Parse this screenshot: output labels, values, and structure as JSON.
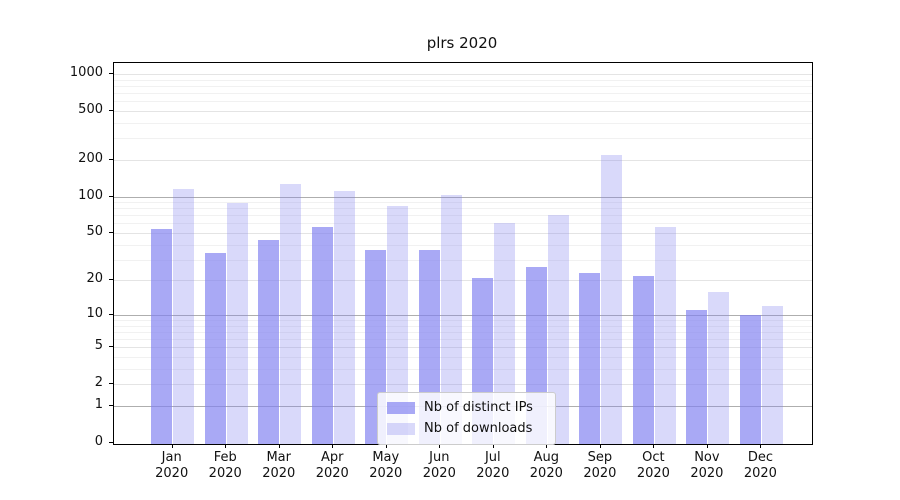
{
  "chart_data": {
    "type": "bar",
    "title": "plrs 2020",
    "xlabel": "",
    "ylabel": "",
    "year": "2020",
    "categories": [
      "Jan",
      "Feb",
      "Mar",
      "Apr",
      "May",
      "Jun",
      "Jul",
      "Aug",
      "Sep",
      "Oct",
      "Nov",
      "Dec"
    ],
    "series": [
      {
        "name": "Nb of distinct IPs",
        "color": "#a6a6f5",
        "base_color": "#8080f0",
        "opacity": 0.68,
        "values": [
          54,
          34,
          44,
          56,
          36,
          36,
          21,
          26,
          23,
          22,
          11,
          10
        ]
      },
      {
        "name": "Nb of downloads",
        "color": "#d9d9fa",
        "base_color": "#8080f0",
        "opacity": 0.3,
        "values": [
          115,
          88,
          127,
          110,
          84,
          102,
          60,
          70,
          219,
          56,
          16,
          12
        ]
      }
    ],
    "y_scale": "symlog (log1p)",
    "y_ticks": [
      0,
      1,
      2,
      5,
      10,
      20,
      50,
      100,
      200,
      500,
      1000
    ],
    "y_decade_ticks": [
      1,
      10,
      100
    ],
    "y_minor_ticks": [
      3,
      4,
      6,
      7,
      8,
      9,
      30,
      40,
      60,
      70,
      80,
      90,
      300,
      400,
      600,
      700,
      800,
      900
    ],
    "ylim": [
      0,
      1230
    ],
    "grid": true,
    "legend_position": "lower center inside plot",
    "colors": {
      "background": "#ffffff",
      "spine": "#000000",
      "text": "#111111",
      "grid_minor": "#f1f1f1",
      "grid_labeled": "#e4e4e4",
      "grid_decade": "#aeaeae",
      "legend_border": "#cccccc"
    }
  }
}
